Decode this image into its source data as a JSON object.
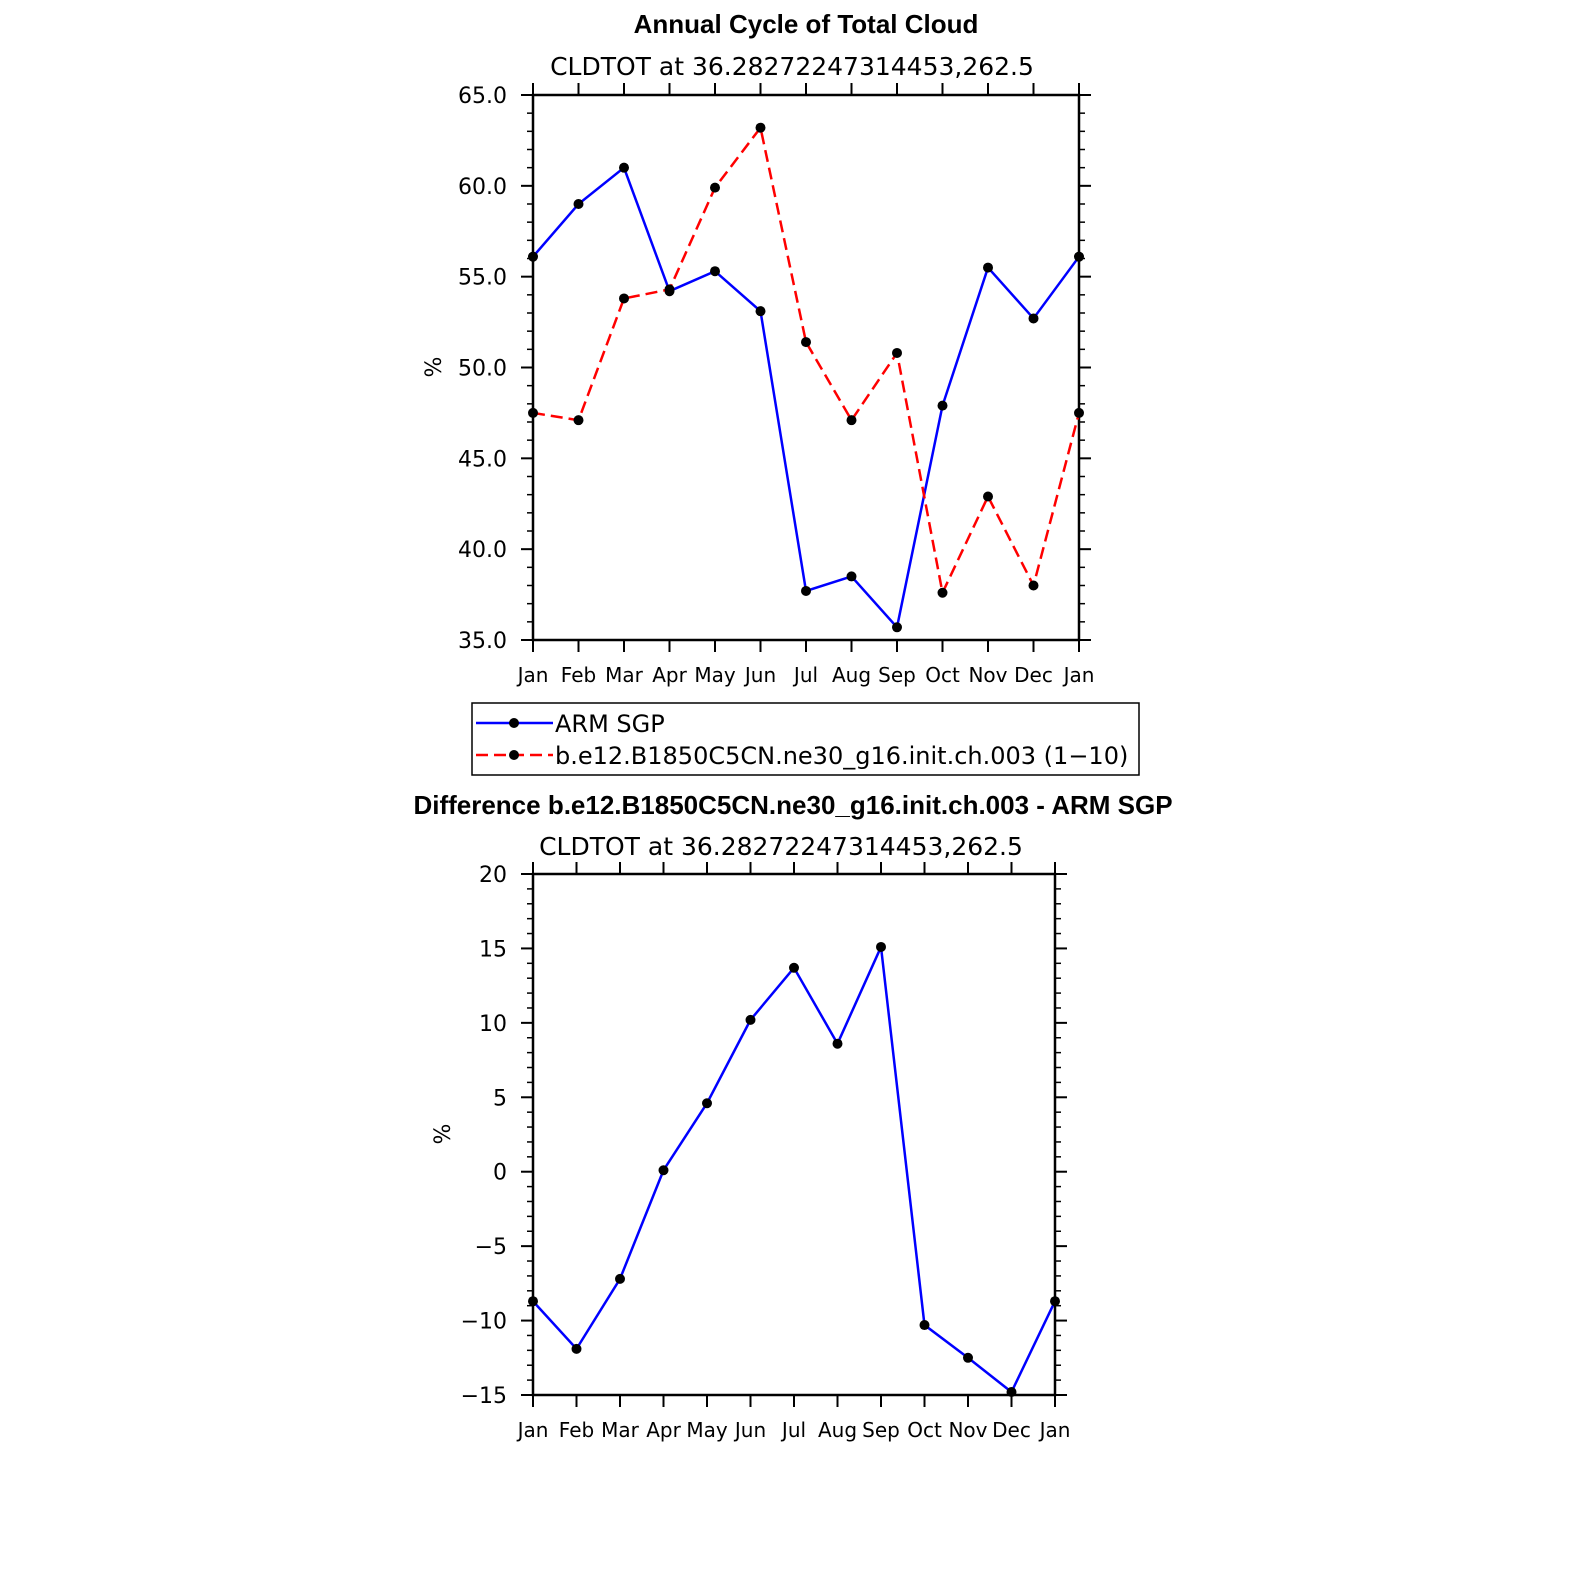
{
  "chart_data": [
    {
      "type": "line",
      "title": "Annual Cycle of Total Cloud",
      "subtitle": "CLDTOT at 36.28272247314453,262.5",
      "ylabel": "%",
      "xlabel": "",
      "ylim": [
        35.0,
        65.0
      ],
      "yticks": [
        "35.0",
        "40.0",
        "45.0",
        "50.0",
        "55.0",
        "60.0",
        "65.0"
      ],
      "ytick_values": [
        35,
        40,
        45,
        50,
        55,
        60,
        65
      ],
      "categories": [
        "Jan",
        "Feb",
        "Mar",
        "Apr",
        "May",
        "Jun",
        "Jul",
        "Aug",
        "Sep",
        "Oct",
        "Nov",
        "Dec",
        "Jan"
      ],
      "series": [
        {
          "name": "ARM SGP",
          "color": "#0000ff",
          "dash": "solid",
          "values": [
            56.1,
            59.0,
            61.0,
            54.2,
            55.3,
            53.1,
            37.7,
            38.5,
            35.7,
            47.9,
            55.5,
            52.7,
            56.1
          ]
        },
        {
          "name": "b.e12.B1850C5CN.ne30_g16.init.ch.003 (1−10)",
          "color": "#ff0000",
          "dash": "dashed",
          "values": [
            47.5,
            47.1,
            53.8,
            54.3,
            59.9,
            63.2,
            51.4,
            47.1,
            50.8,
            37.6,
            42.9,
            38.0,
            47.5
          ]
        }
      ],
      "legend_position": "below"
    },
    {
      "type": "line",
      "title": "Difference b.e12.B1850C5CN.ne30_g16.init.ch.003 - ARM SGP",
      "subtitle": "CLDTOT at 36.28272247314453,262.5",
      "ylabel": "%",
      "xlabel": "",
      "ylim": [
        -15,
        20
      ],
      "yticks": [
        "−15",
        "−10",
        "−5",
        "0",
        "5",
        "10",
        "15",
        "20"
      ],
      "ytick_values": [
        -15,
        -10,
        -5,
        0,
        5,
        10,
        15,
        20
      ],
      "categories": [
        "Jan",
        "Feb",
        "Mar",
        "Apr",
        "May",
        "Jun",
        "Jul",
        "Aug",
        "Sep",
        "Oct",
        "Nov",
        "Dec",
        "Jan"
      ],
      "series": [
        {
          "name": "Difference",
          "color": "#0000ff",
          "dash": "solid",
          "values": [
            -8.7,
            -11.9,
            -7.2,
            0.1,
            4.6,
            10.2,
            13.7,
            8.6,
            15.1,
            -10.3,
            -12.5,
            -14.8,
            -8.7
          ]
        }
      ]
    }
  ]
}
